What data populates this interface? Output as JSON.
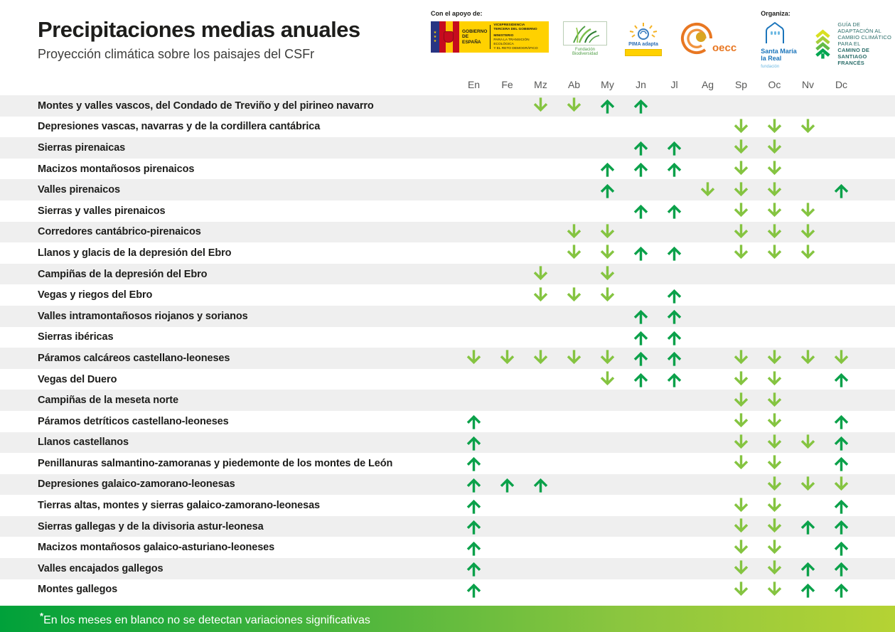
{
  "header": {
    "title": "Precipitaciones medias anuales",
    "subtitle": "Proyección climática sobre los paisajes del CSFr",
    "support_label": "Con el apoyo de:",
    "organizer_label": "Organiza:",
    "logos": {
      "gobierno": {
        "title": "GOBIERNO DE ESPAÑA",
        "line1": "VICEPRESIDENCIA",
        "line2": "TERCERA DEL GOBIERNO",
        "line3": "MINISTERIO",
        "line4": "PARA LA TRANSICIÓN ECOLÓGICA",
        "line5": "Y EL RETO DEMOGRÁFICO",
        "eu_stars": "★"
      },
      "biodiversidad": {
        "label": "Fundación Biodiversidad"
      },
      "pima": {
        "label": "PIMA adapta"
      },
      "oecc": {
        "label": "oecc"
      },
      "santamaria": {
        "line1": "Santa María",
        "line2": "la Real",
        "line3": "fundación"
      },
      "guia": {
        "line1": "GUÍA DE ADAPTACIÓN AL",
        "line2": "CAMBIO CLIMÁTICO PARA EL",
        "line3": "CAMINO DE SANTIAGO",
        "line4": "FRANCÉS"
      }
    }
  },
  "chart_data": {
    "type": "table",
    "title": "Precipitaciones medias anuales",
    "subtitle": "Proyección climática sobre los paisajes del CSFr",
    "months": [
      "En",
      "Fe",
      "Mz",
      "Ab",
      "My",
      "Jn",
      "Jl",
      "Ag",
      "Sp",
      "Oc",
      "Nv",
      "Dc"
    ],
    "cell_values_legend": "up = flecha verde oscuro hacia arriba, down = flecha verde claro hacia abajo, vacío = sin variación significativa",
    "rows": [
      {
        "name": "Montes y valles vascos, del Condado de Treviño y del pirineo navarro",
        "cells": [
          "",
          "",
          "down",
          "down",
          "up",
          "up",
          "",
          "",
          "",
          "",
          "",
          ""
        ]
      },
      {
        "name": "Depresiones vascas, navarras y de la cordillera cantábrica",
        "cells": [
          "",
          "",
          "",
          "",
          "",
          "",
          "",
          "",
          "down",
          "down",
          "down",
          ""
        ]
      },
      {
        "name": "Sierras pirenaicas",
        "cells": [
          "",
          "",
          "",
          "",
          "",
          "up",
          "up",
          "",
          "down",
          "down",
          "",
          ""
        ]
      },
      {
        "name": "Macizos montañosos pirenaicos",
        "cells": [
          "",
          "",
          "",
          "",
          "up",
          "up",
          "up",
          "",
          "down",
          "down",
          "",
          ""
        ]
      },
      {
        "name": "Valles pirenaicos",
        "cells": [
          "",
          "",
          "",
          "",
          "up",
          "",
          "",
          "down",
          "down",
          "down",
          "",
          "up"
        ]
      },
      {
        "name": "Sierras y valles pirenaicos",
        "cells": [
          "",
          "",
          "",
          "",
          "",
          "up",
          "up",
          "",
          "down",
          "down",
          "down",
          ""
        ]
      },
      {
        "name": "Corredores cantábrico-pirenaicos",
        "cells": [
          "",
          "",
          "",
          "down",
          "down",
          "",
          "",
          "",
          "down",
          "down",
          "down",
          ""
        ]
      },
      {
        "name": "Llanos y glacis de la depresión del Ebro",
        "cells": [
          "",
          "",
          "",
          "down",
          "down",
          "up",
          "up",
          "",
          "down",
          "down",
          "down",
          ""
        ]
      },
      {
        "name": "Campiñas de la depresión del Ebro",
        "cells": [
          "",
          "",
          "down",
          "",
          "down",
          "",
          "",
          "",
          "",
          "",
          "",
          ""
        ]
      },
      {
        "name": "Vegas y riegos del Ebro",
        "cells": [
          "",
          "",
          "down",
          "down",
          "down",
          "",
          "up",
          "",
          "",
          "",
          "",
          ""
        ]
      },
      {
        "name": "Valles intramontañosos riojanos y sorianos",
        "cells": [
          "",
          "",
          "",
          "",
          "",
          "up",
          "up",
          "",
          "",
          "",
          "",
          ""
        ]
      },
      {
        "name": "Sierras ibéricas",
        "cells": [
          "",
          "",
          "",
          "",
          "",
          "up",
          "up",
          "",
          "",
          "",
          "",
          ""
        ]
      },
      {
        "name": "Páramos calcáreos castellano-leoneses",
        "cells": [
          "down",
          "down",
          "down",
          "down",
          "down",
          "up",
          "up",
          "",
          "down",
          "down",
          "down",
          "down"
        ]
      },
      {
        "name": "Vegas del Duero",
        "cells": [
          "",
          "",
          "",
          "",
          "down",
          "up",
          "up",
          "",
          "down",
          "down",
          "",
          "up"
        ]
      },
      {
        "name": "Campiñas de la meseta norte",
        "cells": [
          "",
          "",
          "",
          "",
          "",
          "",
          "",
          "",
          "down",
          "down",
          "",
          ""
        ]
      },
      {
        "name": "Páramos detríticos castellano-leoneses",
        "cells": [
          "up",
          "",
          "",
          "",
          "",
          "",
          "",
          "",
          "down",
          "down",
          "",
          "up"
        ]
      },
      {
        "name": "Llanos castellanos",
        "cells": [
          "up",
          "",
          "",
          "",
          "",
          "",
          "",
          "",
          "down",
          "down",
          "down",
          "up"
        ]
      },
      {
        "name": "Penillanuras salmantino-zamoranas y piedemonte de los montes de León",
        "cells": [
          "up",
          "",
          "",
          "",
          "",
          "",
          "",
          "",
          "down",
          "down",
          "",
          "up"
        ]
      },
      {
        "name": "Depresiones galaico-zamorano-leonesas",
        "cells": [
          "up",
          "up",
          "up",
          "",
          "",
          "",
          "",
          "",
          "",
          "down",
          "down",
          "down"
        ]
      },
      {
        "name": "Tierras altas, montes y sierras galaico-zamorano-leonesas",
        "cells": [
          "up",
          "",
          "",
          "",
          "",
          "",
          "",
          "",
          "down",
          "down",
          "",
          "up"
        ]
      },
      {
        "name": "Sierras gallegas y de la divisoria astur-leonesa",
        "cells": [
          "up",
          "",
          "",
          "",
          "",
          "",
          "",
          "",
          "down",
          "down",
          "up",
          "up"
        ]
      },
      {
        "name": "Macizos montañosos galaico-asturiano-leoneses",
        "cells": [
          "up",
          "",
          "",
          "",
          "",
          "",
          "",
          "",
          "down",
          "down",
          "",
          "up"
        ]
      },
      {
        "name": "Valles encajados gallegos",
        "cells": [
          "up",
          "",
          "",
          "",
          "",
          "",
          "",
          "",
          "down",
          "down",
          "up",
          "up"
        ]
      },
      {
        "name": "Montes gallegos",
        "cells": [
          "up",
          "",
          "",
          "",
          "",
          "",
          "",
          "",
          "down",
          "down",
          "up",
          "up"
        ]
      }
    ]
  },
  "footer": {
    "asterisk": "*",
    "text": "En los meses en blanco no se detectan variaciones significativas"
  },
  "colors": {
    "up_arrow": "#0ba14a",
    "down_arrow": "#85c441",
    "row_stripe": "#efefef",
    "footer_gradient_start": "#00a13a",
    "footer_gradient_end": "#b5d334",
    "title_text": "#1d1d1b",
    "month_header_text": "#575756"
  }
}
